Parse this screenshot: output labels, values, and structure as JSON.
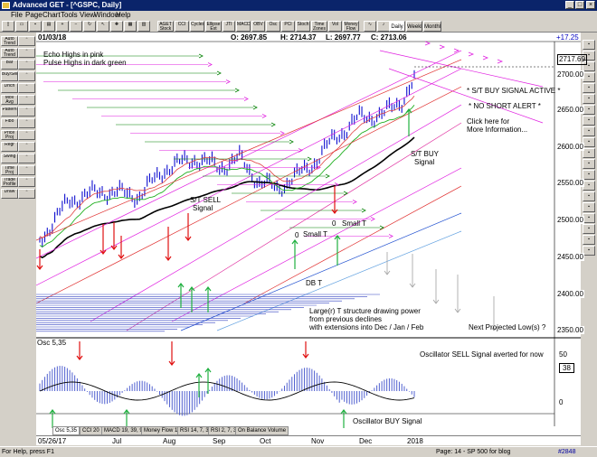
{
  "window": {
    "title": "Advanced GET - [^GSPC, Daily]"
  },
  "menu": [
    "File",
    "Page",
    "Chart",
    "Tools",
    "View",
    "Window",
    "Help"
  ],
  "toolbar": {
    "buttons": [
      "AGET Stock",
      "CCI",
      "Cycles",
      "Ellipse Ext",
      "JTI",
      "MACD",
      "OBV",
      "Osc",
      "PCI",
      "Stoch",
      "Time Zones",
      "Vol",
      "Money Flow"
    ],
    "tabs": [
      "Daily",
      "Weekly",
      "Monthly"
    ],
    "selected_tab": "Daily"
  },
  "left_toolbar": [
    "Auto Trend",
    "Auto Trend",
    "Bar",
    "Buy/Sell",
    "Dnch",
    "Mov Avg",
    "Pattern",
    "Fibo",
    "Price Proj",
    "Regr",
    "Swing",
    "Time Proj",
    "Trade Profile",
    "Draw"
  ],
  "ohlc": {
    "date": "01/03/18",
    "open": "O: 2697.85",
    "high": "H: 2714.37",
    "low": "L: 2697.77",
    "close": "C: 2713.06",
    "change": "+17.25"
  },
  "price_box": "2717.69",
  "y_axis": [
    "2700.00",
    "2650.00",
    "2600.00",
    "2550.00",
    "2500.00",
    "2450.00",
    "2400.00",
    "2350.00"
  ],
  "x_axis": [
    "05/26/17",
    "Jul",
    "Aug",
    "Sep",
    "Oct",
    "Nov",
    "Dec",
    "2018"
  ],
  "annotations": {
    "echo": "Echo Highs in pink",
    "pulse": "Pulse Highs in dark green",
    "buy_active": "* S/T BUY SIGNAL ACTIVE *",
    "no_short": "* NO SHORT ALERT *",
    "click1": "Click here for",
    "click2": "More Information...",
    "st_buy1": "S/T BUY",
    "st_buy2": "Signal",
    "st_sell1": "S/T SELL",
    "st_sell2": "Signal",
    "small_t1": "Small T",
    "small_t2": "Small  T",
    "zero1": "0",
    "zero2": "0",
    "dbt": "DB T",
    "large1": "Large(r) T structure drawing power",
    "large2": "from previous declines",
    "large3": "with extensions into Dec / Jan / Feb",
    "next_low": "Next Projected Low(s) ?"
  },
  "oscillator": {
    "label": "Osc 5,35",
    "sell_note": "Oscillator SELL Signal averted for now",
    "buy_note": "Oscillator BUY Signal",
    "value": "38",
    "axis": [
      "50",
      "0"
    ]
  },
  "osc_tabs": [
    "Osc 5,35",
    "CCI 20",
    "MACD 19, 39, 9",
    "Money Flow 11",
    "RSI 14, 7, 3",
    "RSI 2, 7, 3",
    "On Balance Volume"
  ],
  "status": {
    "left": "For Help, press F1",
    "mid": "Page: 14 - SP 500 for blog",
    "right": "#2848"
  },
  "colors": {
    "bars": "#1010d0",
    "echo": "#e020e0",
    "pulse": "#008000",
    "sell": "#e01010",
    "ma_black": "#000000"
  }
}
